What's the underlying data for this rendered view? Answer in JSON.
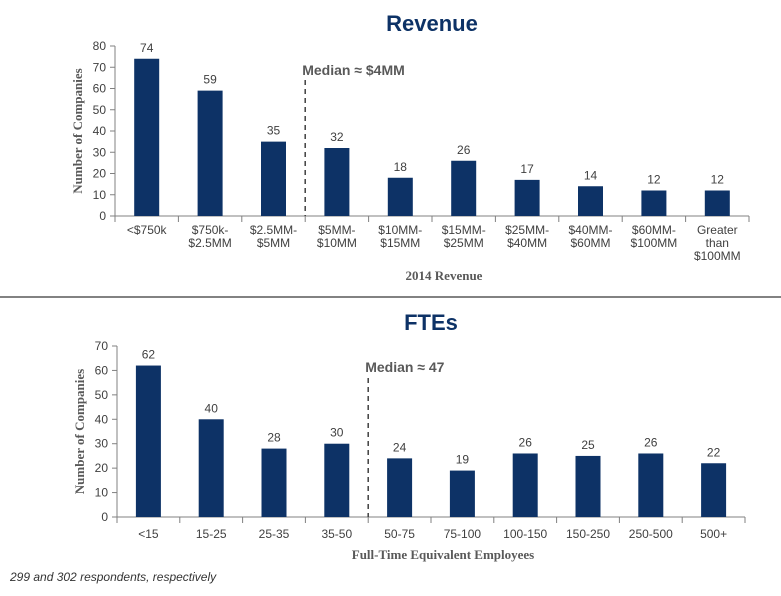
{
  "footnote": "299 and 302 respondents, respectively",
  "colors": {
    "bar": "#0d3266",
    "title": "#0d3266",
    "median_line": "#404040",
    "divider": "#595959"
  },
  "chart_data": [
    {
      "type": "bar",
      "title": "Revenue",
      "xlabel": "2014 Revenue",
      "ylabel": "Number of Companies",
      "ylim": [
        0,
        80
      ],
      "yticks": [
        0,
        10,
        20,
        30,
        40,
        50,
        60,
        70,
        80
      ],
      "categories": [
        "<$750k",
        "$750k-$2.5MM",
        "$2.5MM-$5MM",
        "$5MM-$10MM",
        "$10MM-$15MM",
        "$15MM-$25MM",
        "$25MM-$40MM",
        "$40MM-$60MM",
        "$60MM-$100MM",
        "Greater than $100MM"
      ],
      "tick_label_lines": [
        [
          "<$750k"
        ],
        [
          "$750k-",
          "$2.5MM"
        ],
        [
          "$2.5MM-",
          "$5MM"
        ],
        [
          "$5MM-",
          "$10MM"
        ],
        [
          "$10MM-",
          "$15MM"
        ],
        [
          "$15MM-",
          "$25MM"
        ],
        [
          "$25MM-",
          "$40MM"
        ],
        [
          "$40MM-",
          "$60MM"
        ],
        [
          "$60MM-",
          "$100MM"
        ],
        [
          "Greater",
          "than",
          "$100MM"
        ]
      ],
      "values": [
        74,
        59,
        35,
        32,
        18,
        26,
        17,
        14,
        12,
        12
      ],
      "median_label": "Median ≈ $4MM",
      "median_between": [
        "$2.5MM-$5MM",
        "$5MM-$10MM"
      ],
      "grid": false
    },
    {
      "type": "bar",
      "title": "FTEs",
      "xlabel": "Full-Time Equivalent Employees",
      "ylabel": "Number of Companies",
      "ylim": [
        0,
        70
      ],
      "yticks": [
        0,
        10,
        20,
        30,
        40,
        50,
        60,
        70
      ],
      "categories": [
        "<15",
        "15-25",
        "25-35",
        "35-50",
        "50-75",
        "75-100",
        "100-150",
        "150-250",
        "250-500",
        "500+"
      ],
      "tick_label_lines": [
        [
          "<15"
        ],
        [
          "15-25"
        ],
        [
          "25-35"
        ],
        [
          "35-50"
        ],
        [
          "50-75"
        ],
        [
          "75-100"
        ],
        [
          "100-150"
        ],
        [
          "150-250"
        ],
        [
          "250-500"
        ],
        [
          "500+"
        ]
      ],
      "values": [
        62,
        40,
        28,
        30,
        24,
        19,
        26,
        25,
        26,
        22
      ],
      "median_label": "Median ≈ 47",
      "median_between": [
        "35-50",
        "50-75"
      ],
      "grid": false
    }
  ]
}
